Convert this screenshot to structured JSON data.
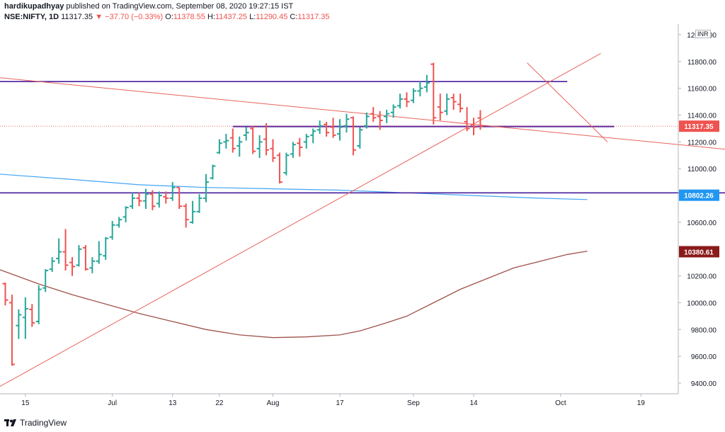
{
  "header": {
    "author": "hardikupadhyay",
    "published": "published on TradingView.com, September 08, 2020 19:27:15 IST",
    "symbol": "NSE:NIFTY, 1D",
    "last": "11317.35",
    "change": "−37.70 (−0.33%)",
    "o_label": "O:",
    "o_value": "11378.55",
    "h_label": "H:",
    "h_value": "11437.25",
    "l_label": "L:",
    "l_value": "11290.45",
    "c_label": "C:",
    "c_value": "11317.35"
  },
  "currency": "INR",
  "footer": {
    "brand": "TradingView"
  },
  "colors": {
    "up": "#26a69a",
    "down": "#ef5350",
    "purple": "#4a1d9e",
    "blue_ma": "#42a5f5",
    "brown_ma": "#a0524a",
    "trend": "#e8635b"
  },
  "chart_data": {
    "type": "ohlc",
    "yticks": [
      9400,
      9600,
      9800,
      10000,
      10200,
      10400,
      10600,
      10800,
      11000,
      11200,
      11400,
      11600,
      11800,
      12000
    ],
    "ytick_labels": [
      "9400.00",
      "9600.00",
      "9800.00",
      "10000.00",
      "10200.00",
      "10400.00",
      "10600.00",
      "10800.00",
      "11000.00",
      "11200.00",
      "11400.00",
      "11600.00",
      "11800.00",
      "12000.00"
    ],
    "ylim": [
      9320,
      12080
    ],
    "xticks": [
      {
        "i": 3,
        "label": "15"
      },
      {
        "i": 16,
        "label": "Jul"
      },
      {
        "i": 25,
        "label": "13"
      },
      {
        "i": 32,
        "label": "22"
      },
      {
        "i": 40,
        "label": "Aug"
      },
      {
        "i": 50,
        "label": "17"
      },
      {
        "i": 61,
        "label": "Sep"
      },
      {
        "i": 70,
        "label": "14"
      },
      {
        "i": 83,
        "label": "Oct"
      },
      {
        "i": 95,
        "label": "19"
      }
    ],
    "price_labels": [
      {
        "label": "11317.35",
        "value": 11317.35,
        "bg": "#ef5350"
      },
      {
        "label": "10802.26",
        "value": 10802.26,
        "bg": "#2196f3"
      },
      {
        "label": "10380.61",
        "value": 10380.61,
        "bg": "#8b1a1a"
      }
    ],
    "bars": [
      [
        10142,
        10150,
        9980,
        10020
      ],
      [
        10000,
        10060,
        9530,
        9540
      ],
      [
        9830,
        9950,
        9730,
        9910
      ],
      [
        9890,
        10040,
        9730,
        9955
      ],
      [
        9950,
        9990,
        9820,
        9850
      ],
      [
        9860,
        10130,
        9840,
        10100
      ],
      [
        10110,
        10250,
        10080,
        10240
      ],
      [
        10250,
        10340,
        10230,
        10310
      ],
      [
        10330,
        10480,
        10290,
        10380
      ],
      [
        10380,
        10550,
        10240,
        10280
      ],
      [
        10300,
        10340,
        10200,
        10270
      ],
      [
        10280,
        10430,
        10270,
        10400
      ],
      [
        10410,
        10430,
        10240,
        10250
      ],
      [
        10260,
        10340,
        10220,
        10310
      ],
      [
        10310,
        10460,
        10290,
        10360
      ],
      [
        10350,
        10490,
        10320,
        10480
      ],
      [
        10490,
        10610,
        10470,
        10580
      ],
      [
        10580,
        10640,
        10560,
        10620
      ],
      [
        10640,
        10720,
        10600,
        10710
      ],
      [
        10720,
        10820,
        10700,
        10780
      ],
      [
        10780,
        10820,
        10720,
        10760
      ],
      [
        10760,
        10850,
        10700,
        10810
      ],
      [
        10810,
        10840,
        10690,
        10720
      ],
      [
        10740,
        10830,
        10710,
        10800
      ],
      [
        10790,
        10830,
        10740,
        10780
      ],
      [
        10780,
        10900,
        10760,
        10860
      ],
      [
        10860,
        10860,
        10700,
        10720
      ],
      [
        10720,
        10740,
        10560,
        10620
      ],
      [
        10600,
        10760,
        10590,
        10680
      ],
      [
        10680,
        10810,
        10670,
        10780
      ],
      [
        10780,
        10960,
        10750,
        10900
      ],
      [
        10930,
        11030,
        10920,
        11020
      ],
      [
        11120,
        11220,
        11110,
        11190
      ],
      [
        11200,
        11260,
        11150,
        11210
      ],
      [
        11230,
        11300,
        11120,
        11150
      ],
      [
        11170,
        11240,
        11090,
        11200
      ],
      [
        11250,
        11310,
        11210,
        11270
      ],
      [
        11300,
        11320,
        11110,
        11130
      ],
      [
        11150,
        11250,
        11080,
        11200
      ],
      [
        11220,
        11340,
        11100,
        11140
      ],
      [
        11150,
        11220,
        11050,
        11080
      ],
      [
        11100,
        11120,
        10890,
        10900
      ],
      [
        10970,
        11120,
        10950,
        11100
      ],
      [
        11110,
        11200,
        11080,
        11180
      ],
      [
        11190,
        11230,
        11090,
        11160
      ],
      [
        11200,
        11260,
        11150,
        11240
      ],
      [
        11250,
        11300,
        11190,
        11280
      ],
      [
        11290,
        11360,
        11260,
        11320
      ],
      [
        11330,
        11350,
        11240,
        11270
      ],
      [
        11310,
        11380,
        11230,
        11250
      ],
      [
        11260,
        11370,
        11210,
        11310
      ],
      [
        11320,
        11410,
        11270,
        11370
      ],
      [
        11380,
        11390,
        11100,
        11140
      ],
      [
        11170,
        11310,
        11150,
        11290
      ],
      [
        11320,
        11420,
        11300,
        11390
      ],
      [
        11410,
        11460,
        11350,
        11380
      ],
      [
        11390,
        11430,
        11290,
        11360
      ],
      [
        11390,
        11440,
        11340,
        11410
      ],
      [
        11420,
        11480,
        11380,
        11460
      ],
      [
        11470,
        11560,
        11450,
        11520
      ],
      [
        11520,
        11570,
        11460,
        11500
      ],
      [
        11510,
        11600,
        11490,
        11580
      ],
      [
        11580,
        11650,
        11540,
        11600
      ],
      [
        11610,
        11700,
        11570,
        11640
      ],
      [
        11780,
        11790,
        11330,
        11380
      ],
      [
        11460,
        11560,
        11360,
        11420
      ],
      [
        11430,
        11560,
        11400,
        11520
      ],
      [
        11530,
        11560,
        11440,
        11500
      ],
      [
        11480,
        11560,
        11420,
        11450
      ],
      [
        11350,
        11460,
        11280,
        11300
      ],
      [
        11330,
        11380,
        11250,
        11310
      ],
      [
        11378.55,
        11437.25,
        11290.45,
        11317.35
      ]
    ],
    "series": [
      {
        "kind": "hline",
        "value": 11650,
        "from": -1,
        "to": 84,
        "color": "#4a1d9e",
        "width": 1.6
      },
      {
        "kind": "hline",
        "value": 10820,
        "from": -1,
        "to": 119,
        "color": "#4a1d9e",
        "width": 1.6
      },
      {
        "kind": "hline",
        "value": 11315,
        "from": 34,
        "to": 91,
        "color": "#4a1d9e",
        "width": 2
      },
      {
        "kind": "ma",
        "color": "#42a5f5",
        "width": 1.2,
        "points": [
          [
            -1,
            10960
          ],
          [
            10,
            10920
          ],
          [
            20,
            10880
          ],
          [
            30,
            10860
          ],
          [
            40,
            10850
          ],
          [
            50,
            10840
          ],
          [
            60,
            10820
          ],
          [
            70,
            10800
          ],
          [
            80,
            10780
          ],
          [
            87,
            10770
          ]
        ]
      },
      {
        "kind": "ma",
        "color": "#a0524a",
        "width": 1.3,
        "points": [
          [
            -1,
            10250
          ],
          [
            5,
            10140
          ],
          [
            10,
            10060
          ],
          [
            15,
            9990
          ],
          [
            20,
            9920
          ],
          [
            25,
            9860
          ],
          [
            30,
            9800
          ],
          [
            35,
            9760
          ],
          [
            40,
            9740
          ],
          [
            45,
            9745
          ],
          [
            50,
            9760
          ],
          [
            53,
            9790
          ],
          [
            57,
            9850
          ],
          [
            60,
            9900
          ],
          [
            64,
            10000
          ],
          [
            68,
            10100
          ],
          [
            72,
            10180
          ],
          [
            76,
            10260
          ],
          [
            80,
            10310
          ],
          [
            84,
            10360
          ],
          [
            87,
            10385
          ]
        ]
      },
      {
        "kind": "trend",
        "color": "#e8635b",
        "width": 1,
        "points": [
          [
            -1,
            9370
          ],
          [
            89,
            11860
          ]
        ]
      },
      {
        "kind": "trend",
        "color": "#e8635b",
        "width": 1,
        "points": [
          [
            -1,
            11680
          ],
          [
            125,
            11060
          ]
        ]
      },
      {
        "kind": "trend",
        "color": "#e8635b",
        "width": 1,
        "points": [
          [
            78,
            11790
          ],
          [
            90,
            11200
          ]
        ]
      }
    ]
  }
}
